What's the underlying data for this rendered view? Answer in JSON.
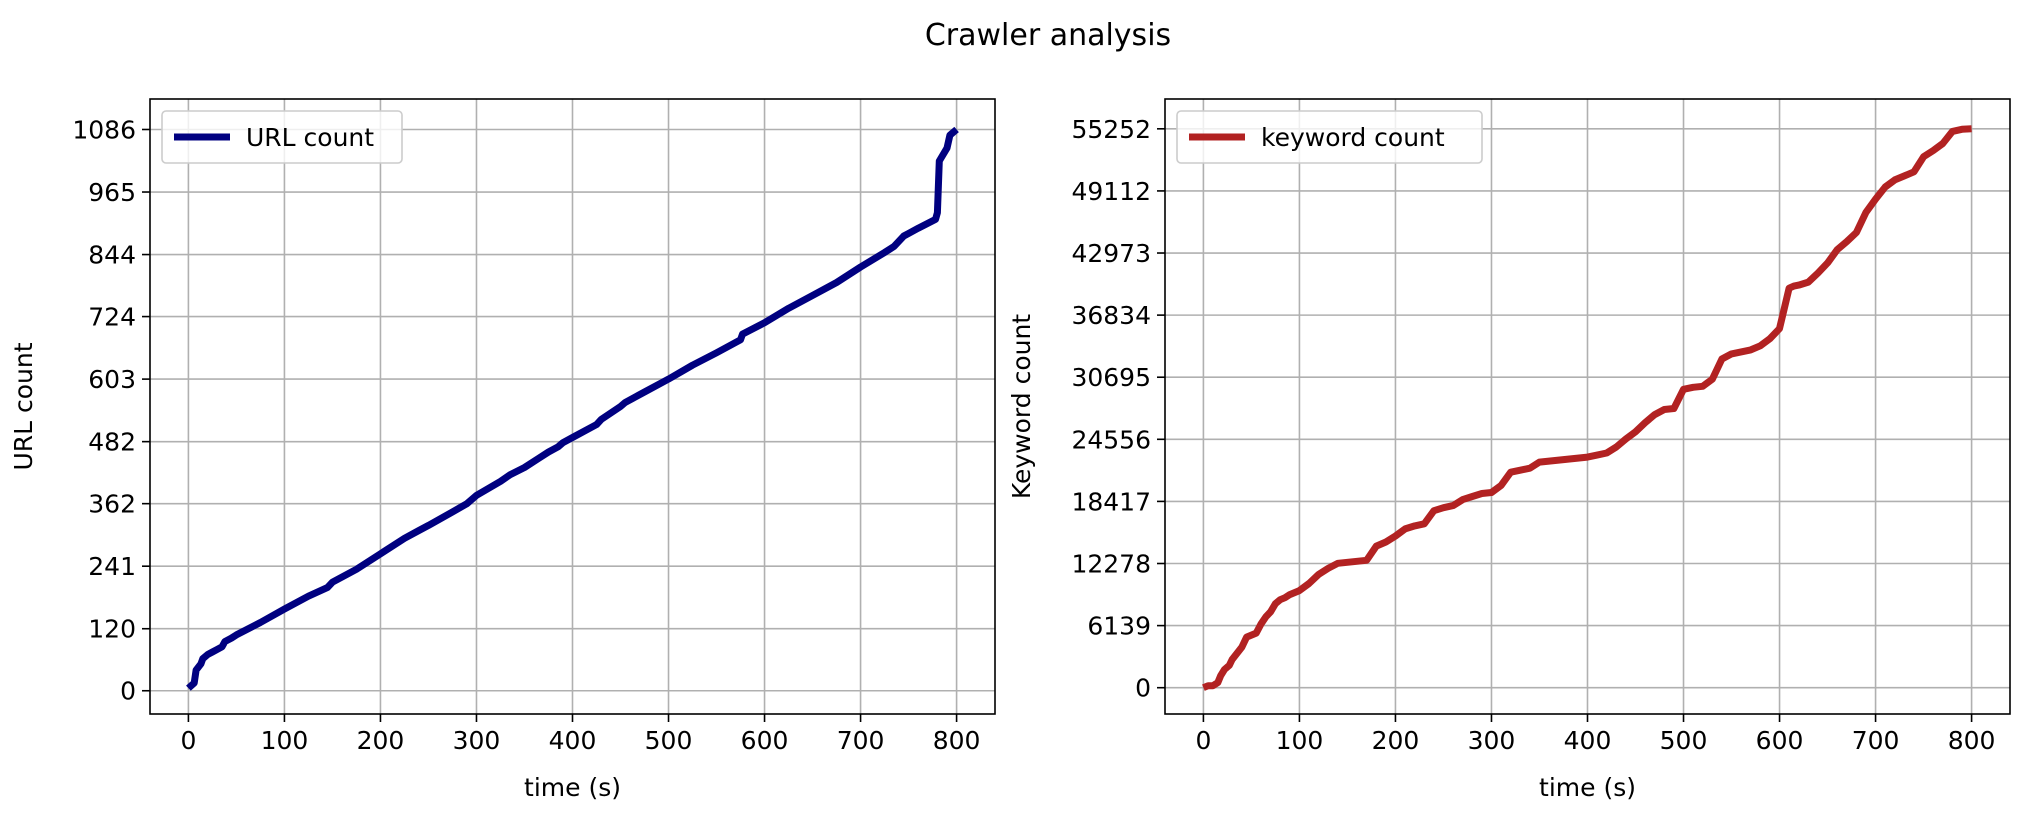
{
  "figure": {
    "suptitle": "Crawler analysis"
  },
  "chart_data": [
    {
      "type": "line",
      "title": "",
      "xlabel": "time (s)",
      "ylabel": "URL count",
      "xlim": [
        -40,
        840
      ],
      "ylim": [
        -45,
        1145
      ],
      "xticks": [
        0,
        100,
        200,
        300,
        400,
        500,
        600,
        700,
        800
      ],
      "yticks": [
        0,
        120,
        241,
        362,
        482,
        603,
        724,
        844,
        965,
        1086
      ],
      "grid": true,
      "legend": "upper-left",
      "series": [
        {
          "name": "URL count",
          "color": "#000080",
          "x": [
            0,
            6,
            8,
            13,
            15,
            20,
            25,
            30,
            35,
            38,
            45,
            50,
            75,
            100,
            125,
            145,
            150,
            175,
            200,
            225,
            240,
            250,
            275,
            290,
            300,
            325,
            335,
            350,
            365,
            375,
            385,
            390,
            400,
            425,
            430,
            450,
            455,
            475,
            500,
            525,
            550,
            575,
            577,
            600,
            625,
            650,
            675,
            700,
            725,
            735,
            745,
            750,
            760,
            778,
            780,
            782,
            790,
            793,
            800
          ],
          "y": [
            5,
            15,
            40,
            52,
            62,
            70,
            75,
            80,
            85,
            95,
            102,
            108,
            132,
            158,
            183,
            200,
            210,
            235,
            265,
            295,
            310,
            320,
            346,
            362,
            378,
            405,
            418,
            432,
            450,
            462,
            472,
            480,
            490,
            515,
            525,
            550,
            558,
            578,
            603,
            630,
            654,
            679,
            690,
            712,
            740,
            765,
            790,
            820,
            848,
            860,
            880,
            885,
            895,
            912,
            925,
            1025,
            1050,
            1075,
            1086
          ]
        }
      ]
    },
    {
      "type": "line",
      "title": "",
      "xlabel": "time (s)",
      "ylabel": "Keyword count",
      "xlim": [
        -40,
        840
      ],
      "ylim": [
        -2600,
        58200
      ],
      "xticks": [
        0,
        100,
        200,
        300,
        400,
        500,
        600,
        700,
        800
      ],
      "yticks": [
        0,
        6139,
        12278,
        18417,
        24556,
        30695,
        36834,
        42973,
        49112,
        55252
      ],
      "grid": true,
      "legend": "upper-left",
      "series": [
        {
          "name": "keyword count",
          "color": "#b22222",
          "x": [
            0,
            5,
            10,
            15,
            18,
            22,
            27,
            30,
            35,
            40,
            45,
            50,
            55,
            60,
            65,
            70,
            75,
            80,
            85,
            90,
            100,
            110,
            120,
            130,
            140,
            150,
            160,
            170,
            180,
            190,
            200,
            210,
            220,
            230,
            240,
            250,
            260,
            270,
            280,
            290,
            300,
            310,
            320,
            330,
            340,
            350,
            360,
            370,
            380,
            390,
            400,
            410,
            420,
            430,
            440,
            450,
            460,
            470,
            480,
            490,
            500,
            510,
            520,
            530,
            540,
            550,
            560,
            570,
            580,
            590,
            600,
            605,
            610,
            615,
            620,
            630,
            640,
            650,
            660,
            670,
            680,
            690,
            700,
            710,
            720,
            730,
            740,
            750,
            760,
            770,
            780,
            790,
            800
          ],
          "y": [
            0,
            200,
            200,
            500,
            1200,
            1800,
            2200,
            2800,
            3400,
            4000,
            5000,
            5200,
            5400,
            6300,
            7000,
            7500,
            8300,
            8700,
            8900,
            9200,
            9600,
            10300,
            11200,
            11800,
            12300,
            12400,
            12500,
            12600,
            14000,
            14400,
            15000,
            15700,
            16000,
            16200,
            17500,
            17800,
            18000,
            18600,
            18900,
            19200,
            19300,
            20000,
            21300,
            21500,
            21700,
            22300,
            22400,
            22500,
            22600,
            22700,
            22800,
            23000,
            23200,
            23800,
            24600,
            25300,
            26200,
            27000,
            27500,
            27600,
            29500,
            29700,
            29800,
            30500,
            32500,
            33000,
            33200,
            33400,
            33800,
            34500,
            35500,
            37500,
            39500,
            39700,
            39800,
            40100,
            41000,
            42000,
            43300,
            44100,
            45000,
            47000,
            48300,
            49500,
            50200,
            50600,
            51000,
            52500,
            53100,
            53800,
            55000,
            55200,
            55252
          ]
        }
      ]
    }
  ]
}
